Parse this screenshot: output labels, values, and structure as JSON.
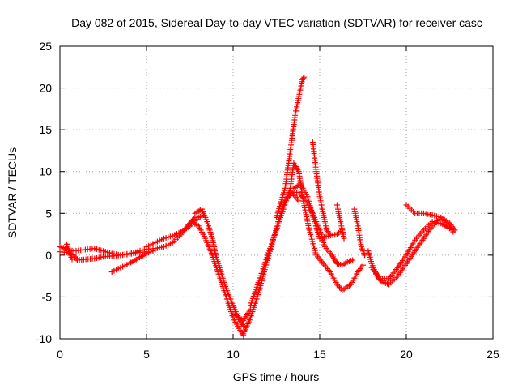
{
  "chart_data": {
    "type": "scatter",
    "title": "Day 082 of 2015, Sidereal Day-to-day VTEC variation (SDTVAR) for receiver casc",
    "xlabel": "GPS time / hours",
    "ylabel": "SDTVAR / TECUs",
    "xlim": [
      0,
      25
    ],
    "ylim": [
      -10,
      25
    ],
    "xticks": [
      "0",
      "5",
      "10",
      "15",
      "20",
      "25"
    ],
    "yticks": [
      "-10",
      "-5",
      "0",
      "5",
      "10",
      "15",
      "20",
      "25"
    ],
    "grid": true,
    "marker": "plus",
    "color": "#ff0000",
    "series": [
      {
        "tracks": [
          [
            [
              0.0,
              1.0
            ],
            [
              0.3,
              0.8
            ],
            [
              0.6,
              0.6
            ],
            [
              0.8,
              0.5
            ],
            [
              1.2,
              0.6
            ],
            [
              1.6,
              0.7
            ],
            [
              2.0,
              0.8
            ],
            [
              2.5,
              0.5
            ],
            [
              3.0,
              0.2
            ],
            [
              3.5,
              0.0
            ],
            [
              4.0,
              0.2
            ],
            [
              4.5,
              0.4
            ]
          ],
          [
            [
              0.0,
              0.4
            ],
            [
              0.5,
              0.3
            ],
            [
              0.8,
              0.0
            ],
            [
              1.0,
              -0.6
            ],
            [
              1.5,
              -0.5
            ],
            [
              2.0,
              -0.4
            ],
            [
              2.5,
              -0.2
            ],
            [
              3.0,
              -0.1
            ],
            [
              3.5,
              0.0
            ],
            [
              4.0,
              0.1
            ],
            [
              4.5,
              0.3
            ],
            [
              5.0,
              0.4
            ]
          ],
          [
            [
              0.4,
              1.3
            ],
            [
              0.5,
              0.6
            ],
            [
              0.6,
              0.0
            ],
            [
              0.7,
              -0.5
            ]
          ],
          [
            [
              3.0,
              -2.0
            ],
            [
              3.5,
              -1.5
            ],
            [
              4.0,
              -1.0
            ],
            [
              4.5,
              -0.4
            ],
            [
              5.0,
              0.2
            ],
            [
              5.5,
              0.6
            ]
          ],
          [
            [
              5.0,
              1.0
            ],
            [
              5.5,
              1.5
            ],
            [
              6.0,
              2.0
            ],
            [
              6.5,
              2.3
            ],
            [
              7.0,
              2.8
            ],
            [
              7.5,
              3.5
            ],
            [
              8.0,
              4.5
            ],
            [
              8.3,
              4.8
            ]
          ],
          [
            [
              4.5,
              0.5
            ],
            [
              5.0,
              0.7
            ],
            [
              5.5,
              0.8
            ],
            [
              6.0,
              1.0
            ],
            [
              6.5,
              1.5
            ],
            [
              7.0,
              2.5
            ],
            [
              7.5,
              3.8
            ],
            [
              7.8,
              4.5
            ]
          ],
          [
            [
              7.8,
              5.0
            ],
            [
              8.2,
              5.5
            ],
            [
              8.5,
              4.0
            ],
            [
              8.8,
              2.0
            ],
            [
              9.0,
              0.0
            ],
            [
              9.3,
              -2.0
            ],
            [
              9.6,
              -4.0
            ],
            [
              10.0,
              -6.0
            ],
            [
              10.3,
              -7.5
            ],
            [
              10.6,
              -8.5
            ]
          ],
          [
            [
              7.6,
              4.0
            ],
            [
              8.0,
              3.5
            ],
            [
              8.4,
              2.0
            ],
            [
              8.8,
              0.0
            ],
            [
              9.2,
              -2.5
            ],
            [
              9.6,
              -5.0
            ],
            [
              10.0,
              -7.5
            ],
            [
              10.4,
              -9.0
            ],
            [
              10.6,
              -9.6
            ]
          ],
          [
            [
              10.0,
              -7.0
            ],
            [
              10.6,
              -7.8
            ],
            [
              11.0,
              -6.5
            ]
          ],
          [
            [
              10.6,
              -9.4
            ],
            [
              11.0,
              -7.5
            ],
            [
              11.4,
              -5.0
            ],
            [
              11.8,
              -2.0
            ],
            [
              12.2,
              1.0
            ],
            [
              12.6,
              4.0
            ],
            [
              13.0,
              6.5
            ],
            [
              13.4,
              7.5
            ],
            [
              13.8,
              6.5
            ]
          ],
          [
            [
              11.0,
              -6.0
            ],
            [
              11.5,
              -3.0
            ],
            [
              12.0,
              0.0
            ],
            [
              12.5,
              3.0
            ],
            [
              12.9,
              5.5
            ],
            [
              13.3,
              8.0
            ],
            [
              13.5,
              11.0
            ],
            [
              13.8,
              10.0
            ],
            [
              14.0,
              7.0
            ],
            [
              14.4,
              3.0
            ],
            [
              14.8,
              0.0
            ],
            [
              15.2,
              -1.0
            ],
            [
              15.6,
              -2.0
            ],
            [
              16.0,
              -3.5
            ],
            [
              16.3,
              -4.2
            ],
            [
              16.8,
              -3.5
            ],
            [
              17.2,
              -2.0
            ],
            [
              17.5,
              -1.2
            ]
          ],
          [
            [
              12.5,
              4.5
            ],
            [
              13.0,
              8.0
            ],
            [
              13.2,
              11.0
            ],
            [
              13.4,
              14.0
            ],
            [
              13.6,
              17.0
            ],
            [
              13.8,
              19.0
            ],
            [
              14.0,
              21.0
            ],
            [
              14.1,
              21.3
            ]
          ],
          [
            [
              13.3,
              7.5
            ],
            [
              13.8,
              7.5
            ],
            [
              14.2,
              6.5
            ],
            [
              14.6,
              5.0
            ],
            [
              15.0,
              3.0
            ],
            [
              15.3,
              1.0
            ],
            [
              15.7,
              0.0
            ],
            [
              16.0,
              -1.0
            ],
            [
              16.3,
              -1.2
            ],
            [
              16.6,
              -0.8
            ],
            [
              16.9,
              -0.6
            ]
          ],
          [
            [
              13.5,
              8.0
            ],
            [
              13.9,
              8.5
            ],
            [
              14.3,
              7.0
            ],
            [
              14.7,
              4.0
            ],
            [
              15.0,
              2.0
            ],
            [
              15.5,
              2.3
            ],
            [
              16.0,
              2.5
            ],
            [
              16.3,
              3.0
            ]
          ],
          [
            [
              14.6,
              13.5
            ],
            [
              14.8,
              10.0
            ],
            [
              15.0,
              7.0
            ],
            [
              15.2,
              5.0
            ],
            [
              15.4,
              3.0
            ],
            [
              15.6,
              2.5
            ]
          ],
          [
            [
              16.0,
              6.0
            ],
            [
              16.2,
              4.0
            ],
            [
              16.4,
              2.0
            ]
          ],
          [
            [
              17.0,
              5.5
            ],
            [
              17.2,
              3.5
            ],
            [
              17.4,
              1.0
            ],
            [
              17.6,
              0.0
            ]
          ],
          [
            [
              17.8,
              0.5
            ],
            [
              18.0,
              -1.0
            ],
            [
              18.3,
              -2.5
            ],
            [
              18.6,
              -3.2
            ],
            [
              19.0,
              -3.5
            ],
            [
              19.5,
              -2.5
            ],
            [
              20.0,
              -1.0
            ],
            [
              20.5,
              0.5
            ],
            [
              21.0,
              2.0
            ],
            [
              21.5,
              3.5
            ],
            [
              22.0,
              4.5
            ],
            [
              22.5,
              3.5
            ],
            [
              22.7,
              2.8
            ]
          ],
          [
            [
              18.0,
              -1.5
            ],
            [
              18.5,
              -2.8
            ],
            [
              19.0,
              -2.8
            ],
            [
              19.5,
              -1.5
            ],
            [
              20.0,
              0.0
            ],
            [
              20.5,
              1.8
            ],
            [
              21.0,
              3.0
            ],
            [
              21.5,
              4.0
            ],
            [
              22.0,
              3.8
            ],
            [
              22.5,
              3.2
            ]
          ],
          [
            [
              20.0,
              6.0
            ],
            [
              20.5,
              5.0
            ],
            [
              21.0,
              5.0
            ],
            [
              21.5,
              4.8
            ],
            [
              22.0,
              4.5
            ],
            [
              22.5,
              3.8
            ],
            [
              22.8,
              3.0
            ]
          ]
        ]
      }
    ]
  }
}
